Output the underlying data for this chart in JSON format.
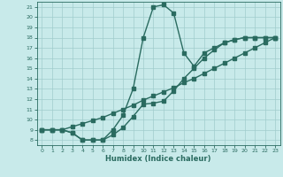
{
  "xlabel": "Humidex (Indice chaleur)",
  "ylabel": "",
  "bg_color": "#c8eaea",
  "grid_color": "#a0cccc",
  "line_color": "#2a6b60",
  "xlim": [
    -0.5,
    23.5
  ],
  "ylim": [
    7.5,
    21.5
  ],
  "xticks": [
    0,
    1,
    2,
    3,
    4,
    5,
    6,
    7,
    8,
    9,
    10,
    11,
    12,
    13,
    14,
    15,
    16,
    17,
    18,
    19,
    20,
    21,
    22,
    23
  ],
  "yticks": [
    8,
    9,
    10,
    11,
    12,
    13,
    14,
    15,
    16,
    17,
    18,
    19,
    20,
    21
  ],
  "line1_x": [
    0,
    1,
    2,
    3,
    4,
    5,
    6,
    7,
    8,
    9,
    10,
    11,
    12,
    13,
    14,
    15,
    16,
    17,
    18,
    19,
    20,
    21,
    22,
    23
  ],
  "line1_y": [
    9.0,
    9.0,
    9.0,
    9.3,
    9.6,
    9.9,
    10.2,
    10.6,
    11.0,
    11.4,
    11.9,
    12.3,
    12.7,
    13.1,
    13.6,
    14.0,
    14.5,
    15.0,
    15.5,
    16.0,
    16.5,
    17.0,
    17.5,
    18.0
  ],
  "line2_x": [
    0,
    1,
    2,
    3,
    4,
    5,
    6,
    7,
    8,
    9,
    10,
    11,
    12,
    13,
    14,
    15,
    16,
    17,
    18,
    19,
    20,
    21,
    22,
    23
  ],
  "line2_y": [
    9.0,
    9.0,
    9.0,
    8.7,
    8.0,
    8.0,
    8.0,
    8.5,
    9.2,
    10.3,
    11.5,
    11.6,
    11.8,
    12.8,
    14.0,
    15.0,
    16.0,
    16.8,
    17.5,
    17.8,
    18.0,
    18.0,
    18.0,
    18.0
  ],
  "line3_x": [
    0,
    1,
    2,
    3,
    4,
    5,
    6,
    7,
    8,
    9,
    10,
    11,
    12,
    13,
    14,
    15,
    16,
    17,
    18,
    19,
    20,
    21,
    22,
    23
  ],
  "line3_y": [
    9.0,
    9.0,
    9.0,
    8.7,
    8.0,
    8.0,
    8.0,
    9.0,
    10.4,
    13.0,
    18.0,
    21.0,
    21.2,
    20.4,
    16.5,
    15.2,
    16.5,
    17.0,
    17.5,
    17.8,
    18.0,
    18.0,
    18.0,
    18.0
  ],
  "marker_size": 2.5,
  "linewidth": 1.0,
  "xlabel_fontsize": 6.0,
  "tick_fontsize": 4.5
}
